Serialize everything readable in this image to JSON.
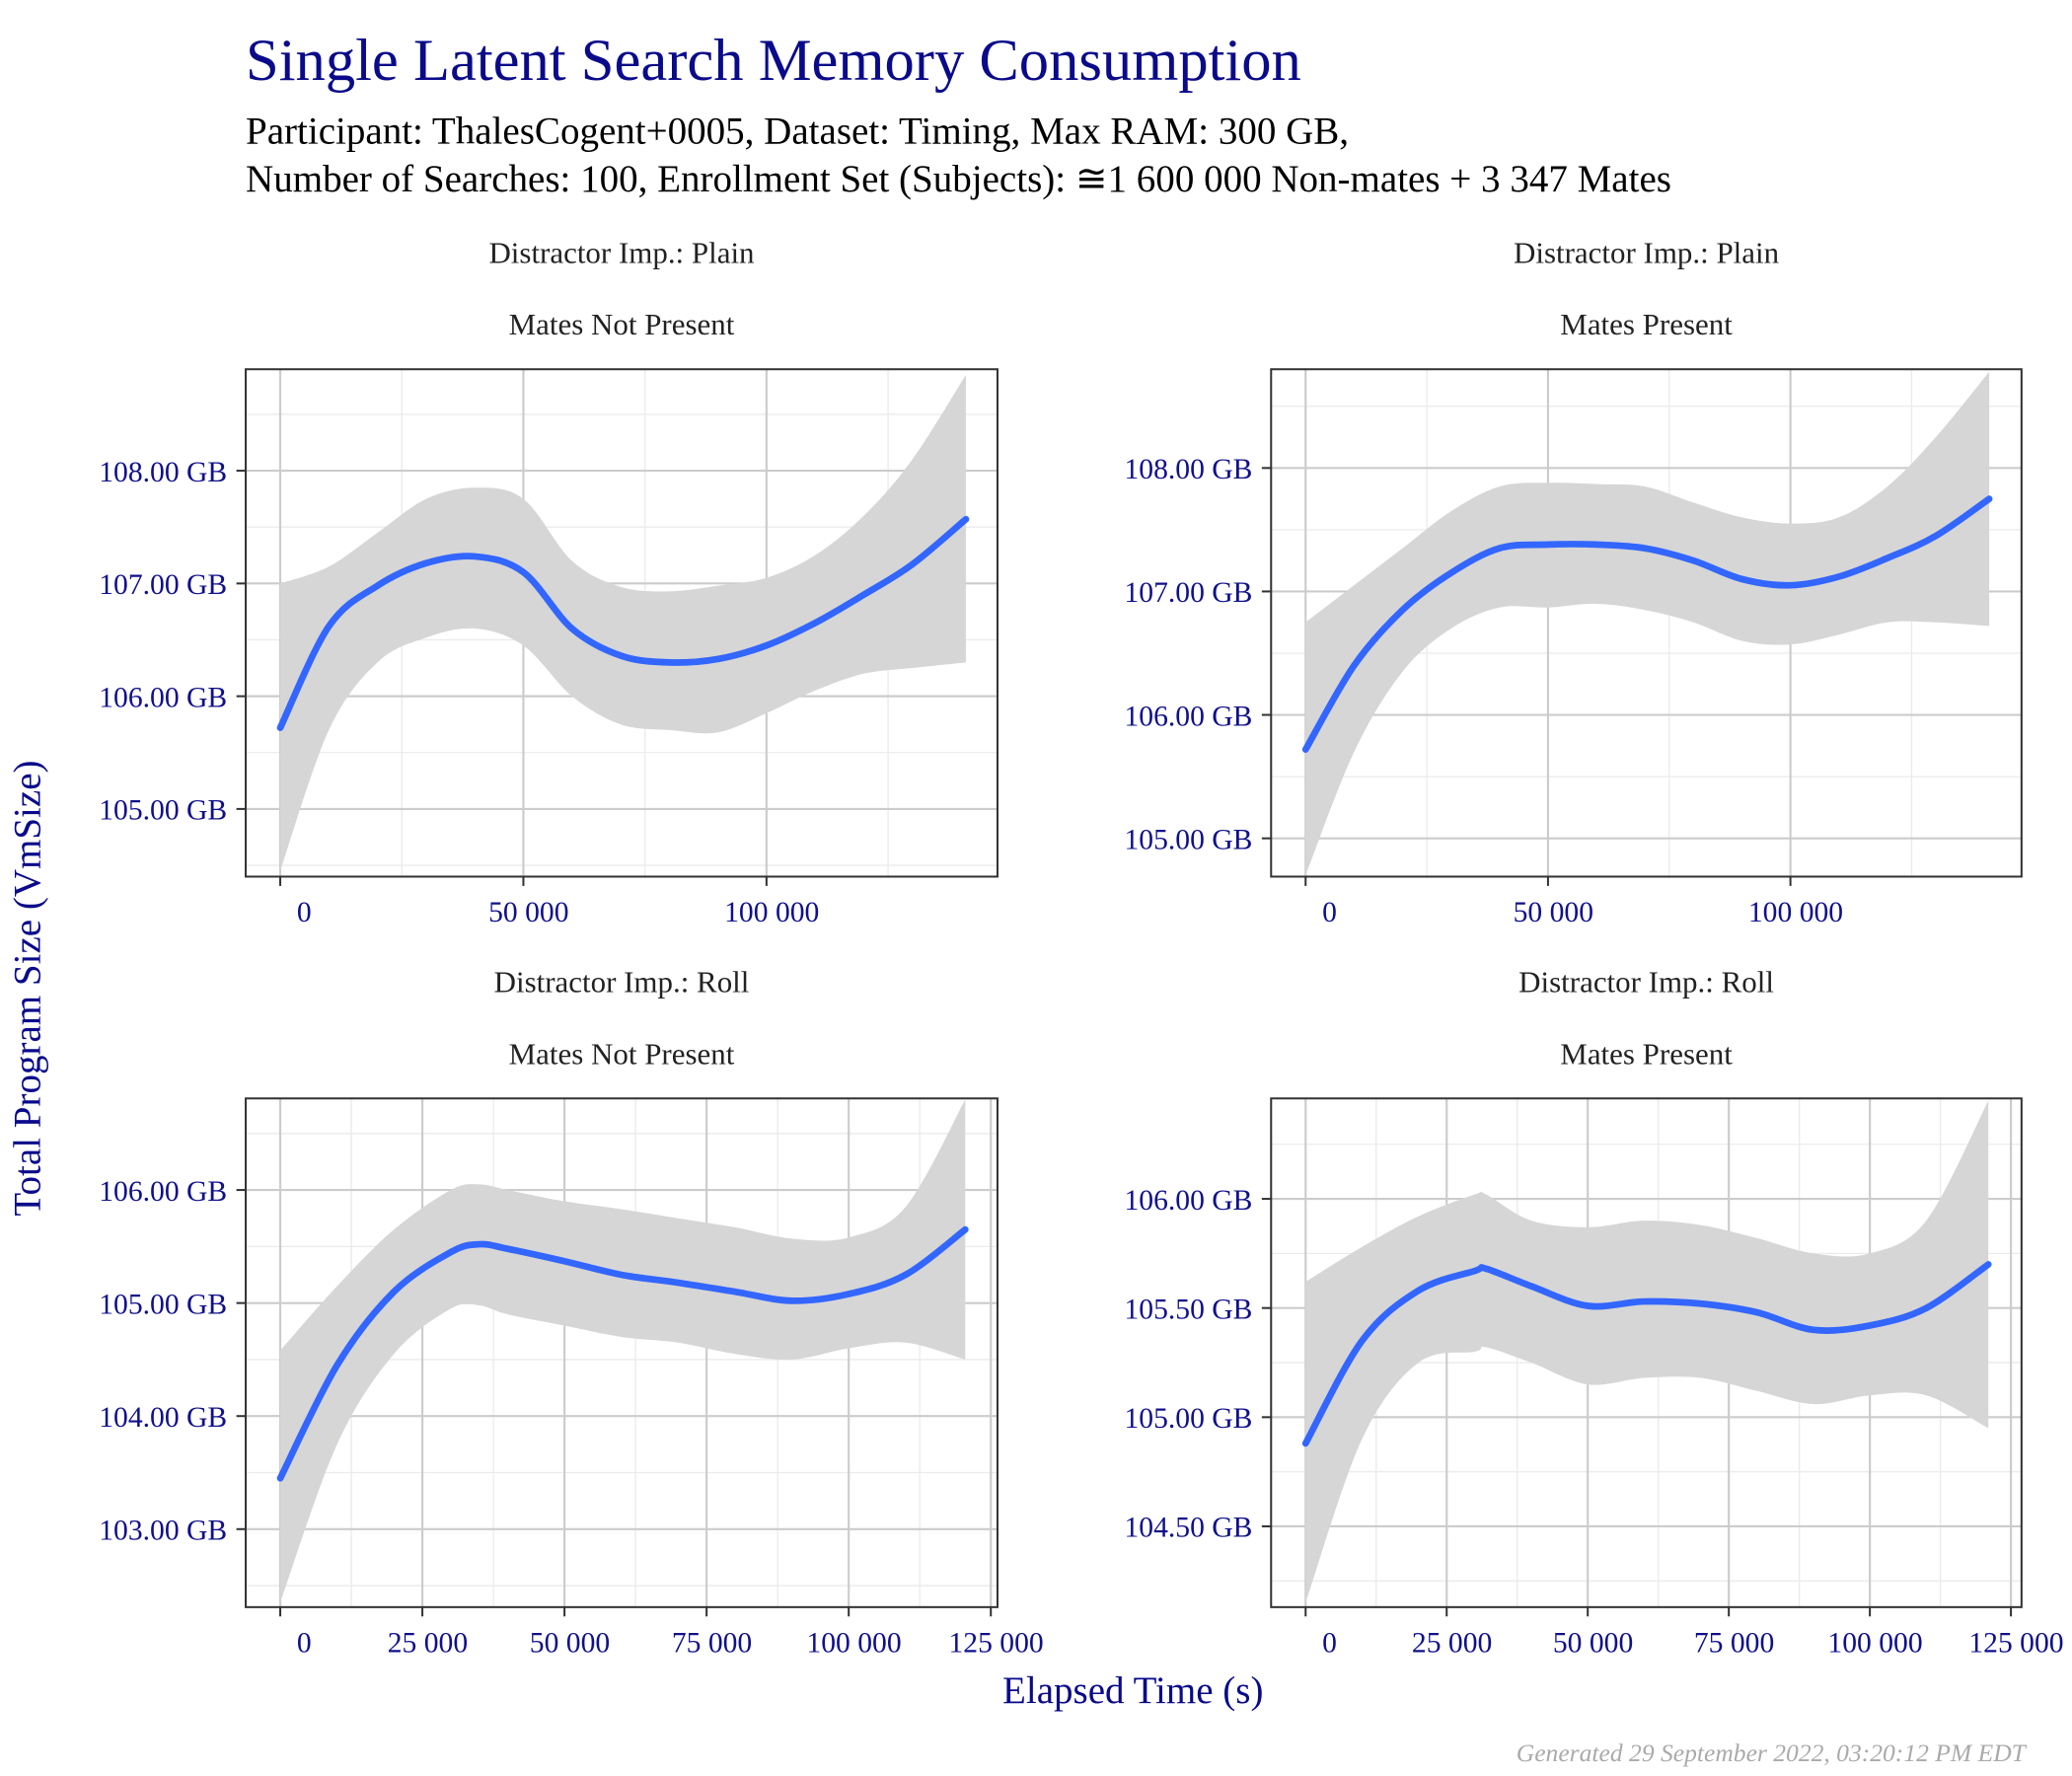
{
  "title": "Single Latent Search Memory Consumption",
  "subtitle": [
    "Participant: ThalesCogent+0005, Dataset: Timing, Max RAM: 300 GB,",
    "Number of Searches: 100, Enrollment Set (Subjects): ≅1 600 000 Non-mates + 3 347 Mates"
  ],
  "xlabel": "Elapsed Time (s)",
  "ylabel": "Total Program Size (VmSize)",
  "footer": "Generated 29 September 2022, 03:20:12 PM EDT",
  "chart_data": [
    {
      "type": "line",
      "strip": [
        "Distractor Imp.: Plain",
        "Mates Not Present"
      ],
      "x": [
        0,
        10000,
        20000,
        30000,
        40000,
        50000,
        60000,
        70000,
        80000,
        90000,
        100000,
        110000,
        120000,
        130000,
        141000
      ],
      "series": [
        {
          "color": "#3366ff",
          "values": [
            105.72,
            106.62,
            106.98,
            107.18,
            107.24,
            107.1,
            106.6,
            106.36,
            106.3,
            106.33,
            106.45,
            106.65,
            106.9,
            107.17,
            107.57
          ]
        }
      ],
      "band": {
        "color": "#d6d6d6",
        "lower": [
          104.45,
          105.7,
          106.3,
          106.52,
          106.6,
          106.45,
          106.0,
          105.75,
          105.7,
          105.68,
          105.85,
          106.05,
          106.2,
          106.25,
          106.3
        ],
        "upper": [
          107.0,
          107.15,
          107.45,
          107.75,
          107.85,
          107.75,
          107.2,
          106.97,
          106.93,
          106.98,
          107.05,
          107.25,
          107.6,
          108.1,
          108.85
        ]
      },
      "xlim": [
        -7100,
        147500
      ],
      "ylim": [
        104.4,
        108.9
      ],
      "xticks": [
        0,
        {
          "value": 50000,
          "label": "50 000"
        },
        {
          "value": 100000,
          "label": "100 000"
        }
      ],
      "yticks": [
        {
          "value": 105,
          "label": "105.00 GB"
        },
        {
          "value": 106,
          "label": "106.00 GB"
        },
        {
          "value": 107,
          "label": "107.00 GB"
        },
        {
          "value": 108,
          "label": "108.00 GB"
        }
      ],
      "grid": true
    },
    {
      "type": "line",
      "strip": [
        "Distractor Imp.: Plain",
        "Mates Present"
      ],
      "x": [
        0,
        10000,
        20000,
        30000,
        40000,
        50000,
        60000,
        70000,
        80000,
        90000,
        100000,
        110000,
        120000,
        130000,
        141000
      ],
      "series": [
        {
          "color": "#3366ff",
          "values": [
            105.72,
            106.4,
            106.85,
            107.15,
            107.35,
            107.38,
            107.38,
            107.35,
            107.25,
            107.1,
            107.05,
            107.12,
            107.27,
            107.45,
            107.75
          ]
        }
      ],
      "band": {
        "color": "#d6d6d6",
        "lower": [
          104.7,
          105.7,
          106.35,
          106.7,
          106.87,
          106.87,
          106.9,
          106.85,
          106.75,
          106.6,
          106.57,
          106.65,
          106.75,
          106.75,
          106.72
        ],
        "upper": [
          106.75,
          107.05,
          107.35,
          107.65,
          107.85,
          107.88,
          107.87,
          107.85,
          107.72,
          107.6,
          107.55,
          107.6,
          107.85,
          108.25,
          108.78
        ]
      },
      "xlim": [
        -7120,
        147670
      ],
      "ylim": [
        104.69,
        108.8
      ],
      "xticks": [
        0,
        {
          "value": 50000,
          "label": "50 000"
        },
        {
          "value": 100000,
          "label": "100 000"
        }
      ],
      "yticks": [
        {
          "value": 105,
          "label": "105.00 GB"
        },
        {
          "value": 106,
          "label": "106.00 GB"
        },
        {
          "value": 107,
          "label": "107.00 GB"
        },
        {
          "value": 108,
          "label": "108.00 GB"
        }
      ],
      "grid": true
    },
    {
      "type": "line",
      "strip": [
        "Distractor Imp.: Roll",
        "Mates Not Present"
      ],
      "x": [
        0,
        10000,
        20000,
        30000,
        35000,
        40000,
        50000,
        60000,
        70000,
        80000,
        90000,
        100000,
        110000,
        120500
      ],
      "series": [
        {
          "color": "#3366ff",
          "values": [
            103.45,
            104.45,
            105.1,
            105.45,
            105.52,
            105.48,
            105.37,
            105.25,
            105.18,
            105.1,
            105.02,
            105.08,
            105.25,
            105.65
          ]
        }
      ],
      "band": {
        "color": "#d6d6d6",
        "lower": [
          102.35,
          103.75,
          104.55,
          104.95,
          104.98,
          104.9,
          104.8,
          104.7,
          104.65,
          104.55,
          104.5,
          104.6,
          104.65,
          104.5
        ],
        "upper": [
          104.58,
          105.15,
          105.65,
          106.0,
          106.05,
          106.0,
          105.9,
          105.83,
          105.75,
          105.67,
          105.57,
          105.58,
          105.85,
          106.8
        ]
      },
      "xlim": [
        -6075,
        126170
      ],
      "ylim": [
        102.31,
        106.81
      ],
      "xticks": [
        0,
        {
          "value": 25000,
          "label": "25 000"
        },
        {
          "value": 50000,
          "label": "50 000"
        },
        {
          "value": 75000,
          "label": "75 000"
        },
        {
          "value": 100000,
          "label": "100 000"
        },
        {
          "value": 125000,
          "label": "125 000"
        }
      ],
      "yticks": [
        {
          "value": 103,
          "label": "103.00 GB"
        },
        {
          "value": 104,
          "label": "104.00 GB"
        },
        {
          "value": 105,
          "label": "105.00 GB"
        },
        {
          "value": 106,
          "label": "106.00 GB"
        }
      ],
      "grid": true
    },
    {
      "type": "line",
      "strip": [
        "Distractor Imp.: Roll",
        "Mates Present"
      ],
      "x": [
        0,
        10000,
        20000,
        30000,
        32000,
        40000,
        50000,
        60000,
        70000,
        80000,
        90000,
        100000,
        110000,
        121000
      ],
      "series": [
        {
          "color": "#3366ff",
          "values": [
            104.88,
            105.35,
            105.58,
            105.67,
            105.68,
            105.6,
            105.51,
            105.53,
            105.52,
            105.48,
            105.4,
            105.42,
            105.5,
            105.7
          ]
        }
      ],
      "band": {
        "color": "#d6d6d6",
        "lower": [
          104.15,
          104.9,
          105.25,
          105.3,
          105.32,
          105.25,
          105.15,
          105.18,
          105.18,
          105.12,
          105.06,
          105.1,
          105.1,
          104.95
        ],
        "upper": [
          105.62,
          105.78,
          105.92,
          106.02,
          106.02,
          105.9,
          105.87,
          105.9,
          105.88,
          105.82,
          105.75,
          105.75,
          105.9,
          106.45
        ]
      },
      "xlim": [
        -6120,
        126880
      ],
      "ylim": [
        104.13,
        106.46
      ],
      "xticks": [
        0,
        {
          "value": 25000,
          "label": "25 000"
        },
        {
          "value": 50000,
          "label": "50 000"
        },
        {
          "value": 75000,
          "label": "75 000"
        },
        {
          "value": 100000,
          "label": "100 000"
        },
        {
          "value": 125000,
          "label": "125 000"
        }
      ],
      "yticks": [
        {
          "value": 104.5,
          "label": "104.50 GB"
        },
        {
          "value": 105,
          "label": "105.00 GB"
        },
        {
          "value": 105.5,
          "label": "105.50 GB"
        },
        {
          "value": 106,
          "label": "106.00 GB"
        }
      ],
      "grid": true
    }
  ]
}
